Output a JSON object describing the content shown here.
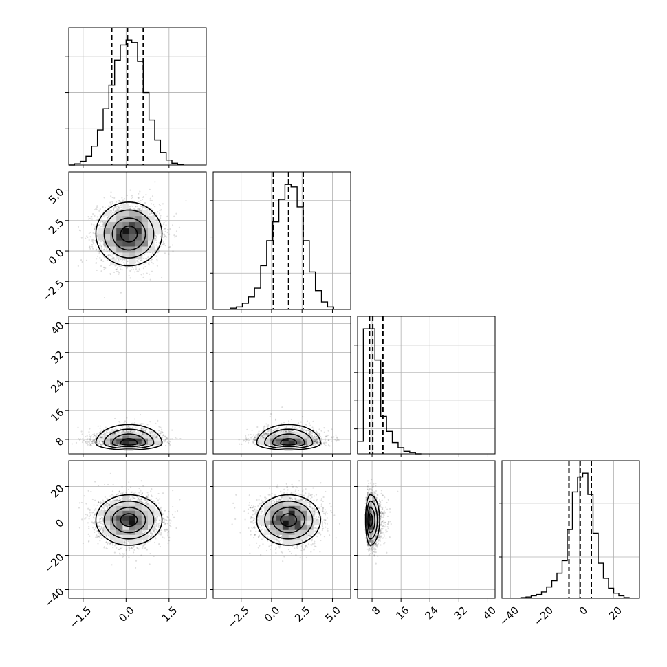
{
  "chart_data": {
    "type": "corner",
    "grid": true,
    "variables": [
      {
        "ticks": [
          -1.5,
          0.0,
          1.5
        ],
        "tick_labels": [
          "−1.5",
          "0.0",
          "1.5"
        ],
        "range": [
          -2.0,
          2.8
        ],
        "mean": 0.1,
        "sd": 0.55,
        "quantiles": [
          -0.5,
          0.05,
          0.6
        ]
      },
      {
        "ticks": [
          -2.5,
          0.0,
          2.5,
          5.0
        ],
        "tick_labels": [
          "−2.5",
          "0.0",
          "2.5",
          "5.0"
        ],
        "range": [
          -4.8,
          6.5
        ],
        "mean": 1.4,
        "sd": 1.25,
        "quantiles": [
          0.15,
          1.4,
          2.6
        ]
      },
      {
        "ticks": [
          8,
          16,
          24,
          32,
          40
        ],
        "tick_labels": [
          "8",
          "16",
          "24",
          "32",
          "40"
        ],
        "range": [
          4.0,
          42.0
        ],
        "mean": 7.5,
        "sd": 2.4,
        "quantiles": [
          7.3,
          8.2,
          11.0
        ]
      },
      {
        "ticks": [
          -40,
          -20,
          0,
          20
        ],
        "tick_labels": [
          "−40",
          "−20",
          "0",
          "20"
        ],
        "range": [
          -45,
          35
        ],
        "mean": 0.5,
        "sd": 7.0,
        "quantiles": [
          -6.0,
          0.5,
          7.0
        ]
      }
    ],
    "histograms": [
      {
        "var": 0,
        "ylim": [
          0,
          1.1
        ],
        "y_ticks": [
          0.29,
          0.58,
          0.87
        ],
        "bin_edges": [
          -2.0,
          -1.8,
          -1.6,
          -1.4,
          -1.2,
          -1.0,
          -0.8,
          -0.6,
          -0.4,
          -0.2,
          0.0,
          0.2,
          0.4,
          0.6,
          0.8,
          1.0,
          1.2,
          1.4,
          1.6,
          1.8,
          2.0
        ],
        "counts": [
          0.0,
          0.01,
          0.03,
          0.07,
          0.15,
          0.28,
          0.45,
          0.64,
          0.84,
          0.96,
          1.0,
          0.98,
          0.83,
          0.58,
          0.36,
          0.2,
          0.1,
          0.04,
          0.015,
          0.005
        ]
      },
      {
        "var": 1,
        "ylim": [
          0,
          1.1
        ],
        "y_ticks": [
          0.29,
          0.58,
          0.87
        ],
        "bin_edges": [
          -3.4,
          -2.9,
          -2.4,
          -1.9,
          -1.4,
          -0.9,
          -0.4,
          0.1,
          0.6,
          1.1,
          1.6,
          2.1,
          2.6,
          3.1,
          3.6,
          4.1,
          4.6,
          5.1
        ],
        "counts": [
          0.01,
          0.02,
          0.05,
          0.1,
          0.17,
          0.35,
          0.55,
          0.7,
          0.88,
          1.0,
          0.98,
          0.82,
          0.55,
          0.3,
          0.15,
          0.06,
          0.02
        ]
      },
      {
        "var": 2,
        "ylim": [
          0,
          1.1
        ],
        "y_ticks": [
          0.2,
          0.43,
          0.65,
          0.87
        ],
        "bin_edges": [
          4.0,
          5.6,
          7.2,
          8.8,
          10.4,
          12.0,
          13.6,
          15.2,
          16.8,
          18.4,
          20.0,
          21.6
        ],
        "counts": [
          0.1,
          1.0,
          1.0,
          0.75,
          0.3,
          0.18,
          0.09,
          0.05,
          0.02,
          0.01,
          0.0
        ]
      },
      {
        "var": 3,
        "ylim": [
          0,
          1.1
        ],
        "y_ticks": [
          0.33,
          0.76
        ],
        "bin_edges": [
          -34,
          -31,
          -28,
          -25,
          -22,
          -19,
          -16,
          -13,
          -10,
          -7,
          -4,
          -1,
          2,
          5,
          8,
          11,
          14,
          17,
          20,
          23,
          26,
          29
        ],
        "counts": [
          0.005,
          0.01,
          0.02,
          0.03,
          0.05,
          0.09,
          0.14,
          0.2,
          0.3,
          0.55,
          0.85,
          0.97,
          1.0,
          0.83,
          0.52,
          0.28,
          0.16,
          0.08,
          0.04,
          0.02,
          0.005
        ]
      }
    ],
    "scatter_panels": [
      {
        "row": 1,
        "col": 0,
        "rho": 0.0
      },
      {
        "row": 2,
        "col": 0,
        "rho": 0.0
      },
      {
        "row": 2,
        "col": 1,
        "rho": 0.0
      },
      {
        "row": 3,
        "col": 0,
        "rho": 0.0
      },
      {
        "row": 3,
        "col": 1,
        "rho": 0.0
      },
      {
        "row": 3,
        "col": 2,
        "rho": 0.0
      }
    ],
    "contour_levels_sigma": [
      0.5,
      1.0,
      1.5,
      2.0
    ]
  }
}
